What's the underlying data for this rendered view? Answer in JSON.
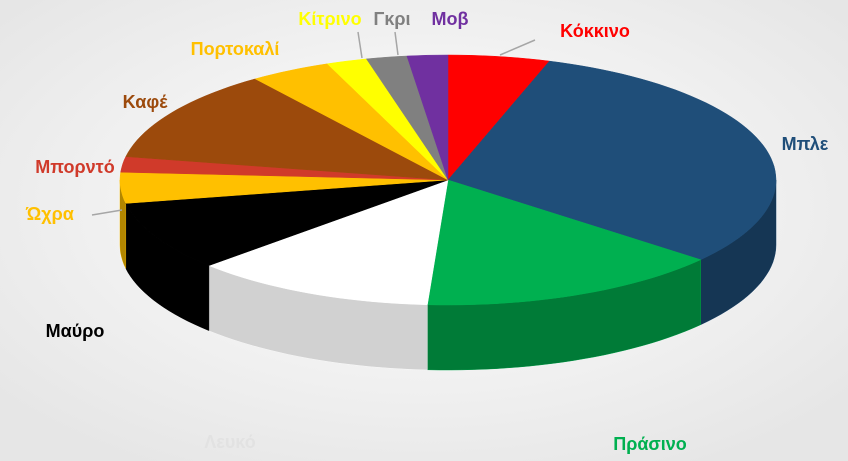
{
  "chart_data": {
    "type": "pie3d",
    "categories": [
      "Κόκκινο",
      "Μπλε",
      "Πράσινο",
      "Λευκό",
      "Μαύρο",
      "Ώχρα",
      "Μπορντό",
      "Καφέ",
      "Πορτοκαλί",
      "Κίτρινο",
      "Γκρι",
      "Μοβ"
    ],
    "values": [
      5,
      31,
      15,
      12,
      9,
      4,
      2,
      12,
      4,
      2,
      2,
      2
    ],
    "colors": [
      "#ff0000",
      "#1f4e79",
      "#00b050",
      "#ffffff",
      "#000000",
      "#ffc000",
      "#d03a2a",
      "#9c4a0c",
      "#ffc000",
      "#ffff00",
      "#808080",
      "#7030a0"
    ],
    "label_colors": [
      "#ff0000",
      "#1f4e79",
      "#00b050",
      "#e2e2e2",
      "#000000",
      "#ffc000",
      "#d03a2a",
      "#9c4a0c",
      "#ffc000",
      "#ffff00",
      "#808080",
      "#7030a0"
    ]
  }
}
